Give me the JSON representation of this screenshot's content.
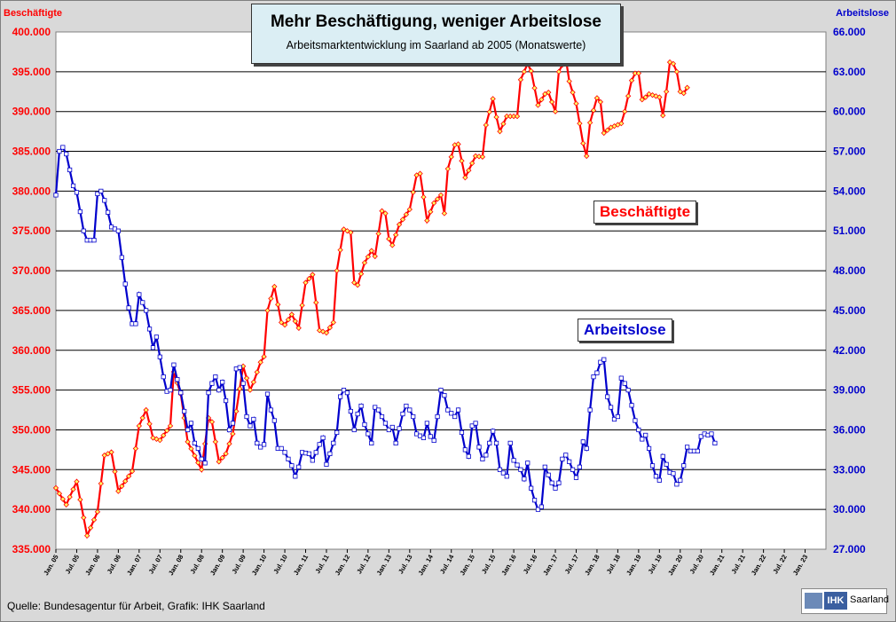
{
  "chart_data": {
    "type": "line",
    "title": "Mehr Beschäftigung, weniger Arbeitslose",
    "subtitle": "Arbeitsmarktentwicklung  im Saarland ab 2005 (Monatswerte)",
    "left_axis": {
      "label": "Beschäftigte",
      "color": "#ff0000",
      "range": [
        335000,
        400000
      ],
      "tick_labels": [
        "335.000",
        "340.000",
        "345.000",
        "350.000",
        "355.000",
        "360.000",
        "365.000",
        "370.000",
        "375.000",
        "380.000",
        "385.000",
        "390.000",
        "395.000",
        "400.000"
      ]
    },
    "right_axis": {
      "label": "Arbeitslose",
      "color": "#0000cc",
      "range": [
        27000,
        66000
      ],
      "tick_labels": [
        "27.000",
        "30.000",
        "33.000",
        "36.000",
        "39.000",
        "42.000",
        "45.000",
        "48.000",
        "51.000",
        "54.000",
        "57.000",
        "60.000",
        "63.000",
        "66.000"
      ]
    },
    "x_tick_labels": [
      "Jan. 05",
      "Jul. 05",
      "Jan. 06",
      "Jul. 06",
      "Jan. 07",
      "Jul. 07",
      "Jan. 08",
      "Jul. 08",
      "Jan. 09",
      "Jul. 09",
      "Jan. 10",
      "Jul. 10",
      "Jan. 11",
      "Jul. 11",
      "Jan. 12",
      "Jul. 12",
      "Jan. 13",
      "Jul. 13",
      "Jan. 14",
      "Jul. 14",
      "Jan. 15",
      "Jul. 15",
      "Jan. 16",
      "Jul. 16",
      "Jan. 17",
      "Jul. 17",
      "Jan. 18",
      "Jul. 18",
      "Jan. 19",
      "Jul. 19",
      "Jan. 20",
      "Jul. 20",
      "Jan. 21",
      "Jul. 21",
      "Jan. 22",
      "Jul. 22",
      "Jan. 23"
    ],
    "grid": "horizontal",
    "series": [
      {
        "name": "Beschäftigte",
        "axis": "left",
        "color": "#ff0000",
        "anchors": [
          [
            0,
            342700
          ],
          [
            3,
            340600
          ],
          [
            6,
            343500
          ],
          [
            9,
            336700
          ],
          [
            12,
            339700
          ],
          [
            14,
            346800
          ],
          [
            16,
            347200
          ],
          [
            18,
            342300
          ],
          [
            22,
            344800
          ],
          [
            24,
            350500
          ],
          [
            26,
            352500
          ],
          [
            28,
            349000
          ],
          [
            30,
            348700
          ],
          [
            33,
            350500
          ],
          [
            34,
            357300
          ],
          [
            36,
            354500
          ],
          [
            38,
            348500
          ],
          [
            42,
            345000
          ],
          [
            44,
            351500
          ],
          [
            45,
            351000
          ],
          [
            47,
            346000
          ],
          [
            49,
            347000
          ],
          [
            51,
            349500
          ],
          [
            54,
            358000
          ],
          [
            56,
            355000
          ],
          [
            57,
            356000
          ],
          [
            59,
            358500
          ],
          [
            60,
            359200
          ],
          [
            61,
            365000
          ],
          [
            63,
            368000
          ],
          [
            65,
            363500
          ],
          [
            66,
            363200
          ],
          [
            68,
            364500
          ],
          [
            70,
            362800
          ],
          [
            72,
            368500
          ],
          [
            74,
            369500
          ],
          [
            76,
            362500
          ],
          [
            78,
            362200
          ],
          [
            80,
            363500
          ],
          [
            81,
            370000
          ],
          [
            83,
            375200
          ],
          [
            85,
            374800
          ],
          [
            86,
            368500
          ],
          [
            87,
            368200
          ],
          [
            89,
            371000
          ],
          [
            91,
            372500
          ],
          [
            92,
            371800
          ],
          [
            94,
            377500
          ],
          [
            95,
            377200
          ],
          [
            96,
            374000
          ],
          [
            97,
            373200
          ],
          [
            99,
            375800
          ],
          [
            102,
            377700
          ],
          [
            104,
            382000
          ],
          [
            105,
            382200
          ],
          [
            107,
            376300
          ],
          [
            109,
            378500
          ],
          [
            111,
            379500
          ],
          [
            112,
            377200
          ],
          [
            113,
            382800
          ],
          [
            115,
            385800
          ],
          [
            116,
            385900
          ],
          [
            118,
            381700
          ],
          [
            120,
            383500
          ],
          [
            121,
            384400
          ],
          [
            123,
            384300
          ],
          [
            124,
            388300
          ],
          [
            126,
            391600
          ],
          [
            127,
            389300
          ],
          [
            128,
            387500
          ],
          [
            130,
            389400
          ],
          [
            133,
            389400
          ],
          [
            134,
            394000
          ],
          [
            136,
            396000
          ],
          [
            137,
            395100
          ],
          [
            139,
            390800
          ],
          [
            141,
            392200
          ],
          [
            142,
            392400
          ],
          [
            144,
            390000
          ],
          [
            145,
            395000
          ],
          [
            147,
            396700
          ],
          [
            148,
            393800
          ],
          [
            150,
            391000
          ],
          [
            152,
            386000
          ],
          [
            153,
            384400
          ],
          [
            154,
            388600
          ],
          [
            156,
            391700
          ],
          [
            157,
            391200
          ],
          [
            158,
            387300
          ],
          [
            160,
            388000
          ],
          [
            163,
            388500
          ],
          [
            164,
            390000
          ],
          [
            166,
            393900
          ],
          [
            167,
            394800
          ],
          [
            168,
            394800
          ],
          [
            169,
            391500
          ],
          [
            170,
            391800
          ],
          [
            171,
            392200
          ],
          [
            174,
            391800
          ],
          [
            175,
            389500
          ],
          [
            176,
            392500
          ],
          [
            177,
            396200
          ],
          [
            178,
            396000
          ],
          [
            179,
            395000
          ],
          [
            180,
            392500
          ],
          [
            181,
            392300
          ],
          [
            182,
            393000
          ]
        ]
      },
      {
        "name": "Arbeitslose",
        "axis": "right",
        "color": "#0000cc",
        "anchors": [
          [
            0,
            53700
          ],
          [
            1,
            57000
          ],
          [
            2,
            57300
          ],
          [
            3,
            56800
          ],
          [
            5,
            54400
          ],
          [
            6,
            53900
          ],
          [
            8,
            51000
          ],
          [
            9,
            50300
          ],
          [
            11,
            50300
          ],
          [
            12,
            53800
          ],
          [
            13,
            54000
          ],
          [
            14,
            53300
          ],
          [
            15,
            52400
          ],
          [
            16,
            51300
          ],
          [
            18,
            51000
          ],
          [
            20,
            47000
          ],
          [
            21,
            45200
          ],
          [
            22,
            44000
          ],
          [
            23,
            44000
          ],
          [
            24,
            46200
          ],
          [
            26,
            45000
          ],
          [
            28,
            42200
          ],
          [
            29,
            43000
          ],
          [
            31,
            40000
          ],
          [
            32,
            38900
          ],
          [
            33,
            39000
          ],
          [
            34,
            40900
          ],
          [
            35,
            39800
          ],
          [
            36,
            38800
          ],
          [
            38,
            36000
          ],
          [
            39,
            36500
          ],
          [
            40,
            35000
          ],
          [
            41,
            34600
          ],
          [
            42,
            33800
          ],
          [
            43,
            33500
          ],
          [
            44,
            38800
          ],
          [
            45,
            39500
          ],
          [
            46,
            40000
          ],
          [
            47,
            39000
          ],
          [
            48,
            39600
          ],
          [
            49,
            38200
          ],
          [
            50,
            36000
          ],
          [
            51,
            36500
          ],
          [
            52,
            40600
          ],
          [
            53,
            40700
          ],
          [
            54,
            39500
          ],
          [
            55,
            37000
          ],
          [
            56,
            36300
          ],
          [
            57,
            36800
          ],
          [
            58,
            35000
          ],
          [
            59,
            34700
          ],
          [
            60,
            34900
          ],
          [
            61,
            38700
          ],
          [
            62,
            37500
          ],
          [
            63,
            36700
          ],
          [
            64,
            34600
          ],
          [
            65,
            34600
          ],
          [
            66,
            34300
          ],
          [
            68,
            33300
          ],
          [
            69,
            32500
          ],
          [
            70,
            33200
          ],
          [
            71,
            34300
          ],
          [
            73,
            34200
          ],
          [
            74,
            33700
          ],
          [
            76,
            34900
          ],
          [
            77,
            35400
          ],
          [
            78,
            33400
          ],
          [
            80,
            35000
          ],
          [
            81,
            35800
          ],
          [
            82,
            38500
          ],
          [
            83,
            39000
          ],
          [
            84,
            38800
          ],
          [
            86,
            36000
          ],
          [
            87,
            37200
          ],
          [
            88,
            37800
          ],
          [
            89,
            36400
          ],
          [
            91,
            35000
          ],
          [
            92,
            37700
          ],
          [
            93,
            37500
          ],
          [
            94,
            37000
          ],
          [
            95,
            36500
          ],
          [
            96,
            36000
          ],
          [
            97,
            36200
          ],
          [
            98,
            35000
          ],
          [
            100,
            37200
          ],
          [
            101,
            37800
          ],
          [
            102,
            37500
          ],
          [
            103,
            37000
          ],
          [
            104,
            35700
          ],
          [
            106,
            35400
          ],
          [
            107,
            36500
          ],
          [
            108,
            35500
          ],
          [
            109,
            35200
          ],
          [
            110,
            37000
          ],
          [
            111,
            39000
          ],
          [
            112,
            38600
          ],
          [
            113,
            37500
          ],
          [
            115,
            37000
          ],
          [
            116,
            37500
          ],
          [
            117,
            35800
          ],
          [
            118,
            34500
          ],
          [
            119,
            34000
          ],
          [
            120,
            36300
          ],
          [
            121,
            36500
          ],
          [
            122,
            34700
          ],
          [
            123,
            33800
          ],
          [
            124,
            34100
          ],
          [
            125,
            35000
          ],
          [
            126,
            35900
          ],
          [
            127,
            35000
          ],
          [
            128,
            33000
          ],
          [
            130,
            32500
          ],
          [
            131,
            35000
          ],
          [
            132,
            33700
          ],
          [
            134,
            33000
          ],
          [
            135,
            32300
          ],
          [
            136,
            33500
          ],
          [
            137,
            31600
          ],
          [
            138,
            30700
          ],
          [
            139,
            30000
          ],
          [
            140,
            30200
          ],
          [
            141,
            33200
          ],
          [
            143,
            32000
          ],
          [
            144,
            31600
          ],
          [
            145,
            32000
          ],
          [
            146,
            33800
          ],
          [
            147,
            34100
          ],
          [
            148,
            33600
          ],
          [
            149,
            33000
          ],
          [
            150,
            32400
          ],
          [
            151,
            33200
          ],
          [
            152,
            35100
          ],
          [
            153,
            34600
          ],
          [
            154,
            37500
          ],
          [
            155,
            40000
          ],
          [
            156,
            40300
          ],
          [
            157,
            41100
          ],
          [
            158,
            41300
          ],
          [
            159,
            38500
          ],
          [
            160,
            37700
          ],
          [
            161,
            36800
          ],
          [
            162,
            37000
          ],
          [
            163,
            39900
          ],
          [
            164,
            39500
          ],
          [
            165,
            39000
          ],
          [
            167,
            36700
          ],
          [
            168,
            36000
          ],
          [
            169,
            35300
          ],
          [
            170,
            35600
          ],
          [
            171,
            34600
          ],
          [
            172,
            33300
          ],
          [
            173,
            32500
          ],
          [
            174,
            32200
          ],
          [
            175,
            34000
          ],
          [
            176,
            33400
          ],
          [
            177,
            32800
          ],
          [
            178,
            32700
          ],
          [
            179,
            31900
          ],
          [
            180,
            32200
          ],
          [
            181,
            33300
          ],
          [
            182,
            34700
          ],
          [
            183,
            34400
          ],
          [
            184,
            34400
          ],
          [
            185,
            34400
          ],
          [
            186,
            35500
          ],
          [
            187,
            35700
          ],
          [
            188,
            35600
          ],
          [
            189,
            35700
          ],
          [
            190,
            35000
          ]
        ]
      }
    ]
  },
  "labels": {
    "beschaeftigte": "Beschäftigte",
    "arbeitslose": "Arbeitslose"
  },
  "source": "Quelle:  Bundesagentur  für Arbeit, Grafik: IHK Saarland",
  "logo": {
    "mark": "IHK",
    "text": "Saarland"
  }
}
